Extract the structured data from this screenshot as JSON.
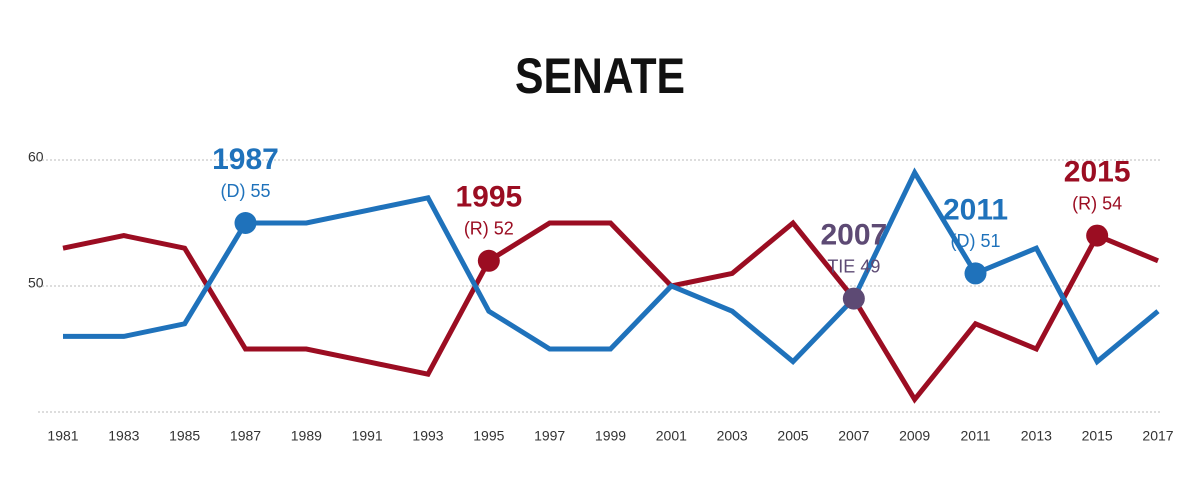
{
  "chart_data": {
    "type": "line",
    "title": "SENATE",
    "categories": [
      "1981",
      "1983",
      "1985",
      "1987",
      "1989",
      "1991",
      "1993",
      "1995",
      "1997",
      "1999",
      "2001",
      "2003",
      "2005",
      "2007",
      "2009",
      "2011",
      "2013",
      "2015",
      "2017"
    ],
    "series": [
      {
        "color": "#9b0d22",
        "values": [
          53,
          54,
          53,
          45,
          45,
          44,
          43,
          52,
          55,
          55,
          50,
          51,
          55,
          49,
          41,
          47,
          45,
          54,
          52
        ]
      },
      {
        "color": "#1f72bb",
        "values": [
          46,
          46,
          47,
          55,
          55,
          56,
          57,
          48,
          45,
          45,
          50,
          48,
          44,
          49,
          59,
          51,
          53,
          44,
          48
        ]
      }
    ],
    "ylim": [
      40,
      60
    ],
    "yticks": [
      50,
      60
    ],
    "grid": true,
    "annotations": [
      {
        "title": "1987",
        "text": "(D) 55",
        "color": "#1f72bb"
      },
      {
        "title": "1995",
        "text": "(R) 52",
        "color": "#9b0d22"
      },
      {
        "title": "2007",
        "text": "TIE 49",
        "color": "#5d4a74"
      },
      {
        "title": "2011",
        "text": "(D) 51",
        "color": "#1f72bb"
      },
      {
        "title": "2015",
        "text": "(R) 54",
        "color": "#9b0d22"
      }
    ]
  }
}
